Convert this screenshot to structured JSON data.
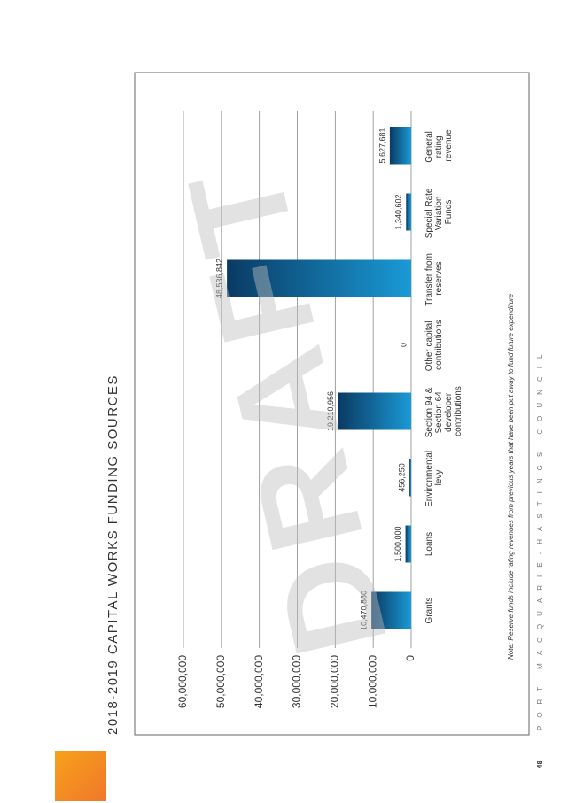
{
  "chart_data": {
    "type": "bar",
    "title": "2018-2019 CAPITAL WORKS FUNDING SOURCES",
    "categories": [
      "Grants",
      "Loans",
      "Environmental levy",
      "Section 94 & Section 64 developer contributions",
      "Other capital contributions",
      "Transfer from reserves",
      "Special Rate Variation Funds",
      "General rating revenue"
    ],
    "values": [
      10470880,
      1500000,
      456250,
      19210956,
      0,
      48536842,
      1340602,
      5627681
    ],
    "value_labels": [
      "10,470,880",
      "1,500,000",
      "456,250",
      "19,210,956",
      "0",
      "48,536,842",
      "1,340,602",
      "5,627,681"
    ],
    "color": "#1a9ad6",
    "ylim": [
      0,
      60000000
    ],
    "yticks": [
      0,
      {
        "value": 10000000,
        "label": "10,000,000"
      },
      {
        "value": 20000000,
        "label": "20,000,000"
      },
      {
        "value": 30000000,
        "label": "30,000,000"
      },
      {
        "value": 40000000,
        "label": "40,000,000"
      },
      {
        "value": 50000000,
        "label": "50,000,000"
      },
      {
        "value": 60000000,
        "label": "60,000,000"
      }
    ],
    "grid": true,
    "note": "Note: Reserve funds include rating revenues from previous years that have been put away to fund future expenditure"
  },
  "watermark": "DRAFT",
  "footer": "PORT MACQUARIE-HASTINGS COUNCIL",
  "page_number": "48"
}
